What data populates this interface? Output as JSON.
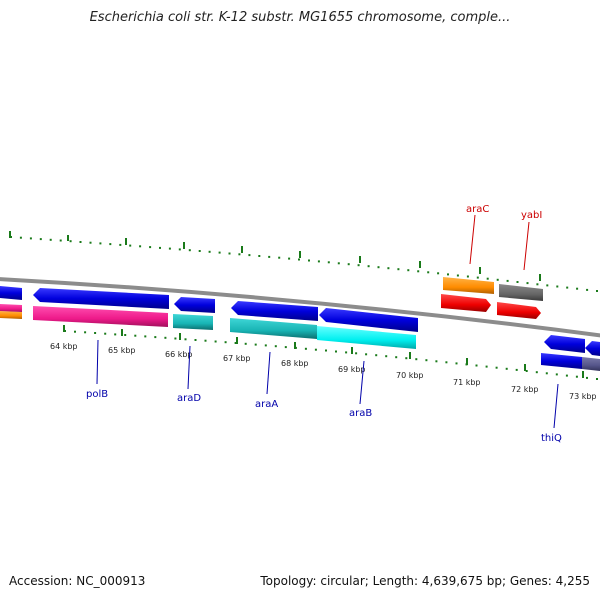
{
  "header": {
    "title": "Escherichia coli str. K-12 substr. MG1655 chromosome, comple..."
  },
  "footer": {
    "accession": "Accession: NC_000913",
    "summary": "Topology: circular; Length: 4,639,675 bp; Genes: 4,255"
  },
  "colors": {
    "backbone": "#8c8c8c",
    "tick": "#1a7a1a",
    "forward_label": "#cc0000",
    "reverse_label": "#0000aa"
  },
  "scale": {
    "ticks": [
      "64 kbp",
      "65 kbp",
      "66 kbp",
      "67 kbp",
      "68 kbp",
      "69 kbp",
      "70 kbp",
      "71 kbp",
      "72 kbp",
      "73 kbp"
    ]
  },
  "genes": [
    {
      "label": "polB",
      "strand": "reverse",
      "color": "#0000ee"
    },
    {
      "label": "araD",
      "strand": "reverse",
      "color": "#0000ee"
    },
    {
      "label": "araA",
      "strand": "reverse",
      "color": "#0000ee"
    },
    {
      "label": "araB",
      "strand": "reverse",
      "color": "#0000ee"
    },
    {
      "label": "araC",
      "strand": "forward",
      "color": "#ff8c00"
    },
    {
      "label": "yabI",
      "strand": "forward",
      "color": "#666666"
    },
    {
      "label": "thiQ",
      "strand": "reverse",
      "color": "#0000ee"
    }
  ]
}
